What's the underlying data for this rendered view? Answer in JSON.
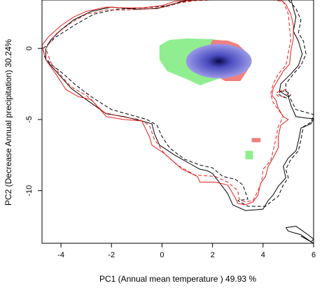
{
  "chart_data": {
    "type": "contour-density",
    "xlabel": "PC1 (Annual mean temperature ) 49.93 %",
    "ylabel": "PC2 (Decrease Annual precipitation) 30.24%",
    "xlim": [
      -4.75,
      6.0
    ],
    "ylim": [
      -13.7,
      3.4
    ],
    "x_ticks": [
      "-4",
      "-2",
      "0",
      "2",
      "4",
      "6"
    ],
    "y_ticks": [
      "0",
      "-5",
      "-10"
    ],
    "x_tick_values": [
      -4,
      -2,
      0,
      2,
      4,
      6
    ],
    "y_tick_values": [
      0,
      -5,
      -10
    ],
    "grid": false,
    "colors": {
      "black_line": "#000000",
      "red_line": "#e8201c",
      "green_fill": "#90ee90",
      "red_fill": "#f08080",
      "blue_low": "#9a9ae8",
      "blue_high": "#0a0a48"
    },
    "series": [
      {
        "color": "black",
        "style": "solid",
        "points": [
          [
            -4.6,
            0.0
          ],
          [
            -4.4,
            0.6
          ],
          [
            -4.0,
            1.3
          ],
          [
            -3.5,
            2.0
          ],
          [
            -2.8,
            2.6
          ],
          [
            -2.0,
            2.9
          ],
          [
            -1.0,
            2.75
          ],
          [
            -0.2,
            2.8
          ],
          [
            0.6,
            3.2
          ],
          [
            1.2,
            3.5
          ],
          [
            2.0,
            3.55
          ],
          [
            3.0,
            3.55
          ],
          [
            4.0,
            3.55
          ],
          [
            5.1,
            3.5
          ],
          [
            5.2,
            2.8
          ],
          [
            5.3,
            2.2
          ],
          [
            5.2,
            1.2
          ],
          [
            5.4,
            0.5
          ],
          [
            5.55,
            -0.4
          ],
          [
            5.4,
            -1.2
          ],
          [
            5.1,
            -1.8
          ],
          [
            4.7,
            -2.5
          ],
          [
            4.65,
            -3.0
          ],
          [
            5.0,
            -3.4
          ],
          [
            5.1,
            -4.0
          ],
          [
            5.3,
            -4.8
          ],
          [
            5.7,
            -4.9
          ],
          [
            6.0,
            -4.95
          ],
          [
            5.9,
            -5.3
          ],
          [
            5.5,
            -5.6
          ],
          [
            5.4,
            -6.5
          ],
          [
            5.3,
            -7.2
          ],
          [
            5.0,
            -7.7
          ],
          [
            4.8,
            -8.3
          ],
          [
            4.9,
            -9.1
          ],
          [
            4.6,
            -9.7
          ],
          [
            4.4,
            -10.3
          ],
          [
            4.2,
            -10.7
          ],
          [
            4.0,
            -11.3
          ],
          [
            3.3,
            -11.4
          ],
          [
            2.8,
            -11.0
          ],
          [
            2.6,
            -10.2
          ],
          [
            2.3,
            -9.5
          ],
          [
            2.0,
            -8.8
          ],
          [
            1.8,
            -8.6
          ],
          [
            1.5,
            -8.5
          ],
          [
            1.0,
            -8.0
          ],
          [
            0.5,
            -7.5
          ],
          [
            -0.1,
            -6.8
          ],
          [
            -0.3,
            -6.0
          ],
          [
            -0.4,
            -5.3
          ],
          [
            -0.8,
            -5.1
          ],
          [
            -1.5,
            -4.8
          ],
          [
            -2.2,
            -4.6
          ],
          [
            -3.0,
            -3.6
          ],
          [
            -3.6,
            -2.8
          ],
          [
            -4.0,
            -2.0
          ],
          [
            -4.4,
            -1.2
          ],
          [
            -4.6,
            -0.8
          ],
          [
            -4.6,
            0.0
          ]
        ]
      },
      {
        "color": "black",
        "style": "dashed",
        "points": [
          [
            -4.7,
            0.0
          ],
          [
            -4.2,
            0.8
          ],
          [
            -3.4,
            1.7
          ],
          [
            -2.7,
            2.4
          ],
          [
            -1.8,
            2.75
          ],
          [
            -0.7,
            2.85
          ],
          [
            0.3,
            3.0
          ],
          [
            0.9,
            3.3
          ],
          [
            1.5,
            3.4
          ],
          [
            2.3,
            3.4
          ],
          [
            3.4,
            3.4
          ],
          [
            4.4,
            3.4
          ],
          [
            5.0,
            3.4
          ],
          [
            5.3,
            2.8
          ],
          [
            5.5,
            2.0
          ],
          [
            5.4,
            1.1
          ],
          [
            5.6,
            0.5
          ],
          [
            5.7,
            -0.4
          ],
          [
            5.5,
            -1.2
          ],
          [
            5.2,
            -1.8
          ],
          [
            4.9,
            -2.5
          ],
          [
            4.9,
            -3.0
          ],
          [
            5.1,
            -3.6
          ],
          [
            5.3,
            -4.3
          ],
          [
            5.7,
            -4.5
          ],
          [
            6.0,
            -4.65
          ],
          [
            5.9,
            -5.2
          ],
          [
            5.6,
            -5.5
          ],
          [
            5.5,
            -6.4
          ],
          [
            5.4,
            -7.2
          ],
          [
            5.1,
            -7.8
          ],
          [
            4.9,
            -8.5
          ],
          [
            5.0,
            -9.1
          ],
          [
            4.8,
            -9.6
          ],
          [
            4.6,
            -10.4
          ],
          [
            4.3,
            -10.8
          ],
          [
            4.1,
            -11.1
          ],
          [
            3.4,
            -11.1
          ],
          [
            3.0,
            -10.7
          ],
          [
            3.4,
            -10.6
          ],
          [
            3.2,
            -9.6
          ],
          [
            2.9,
            -9.2
          ],
          [
            2.4,
            -9.0
          ],
          [
            2.0,
            -8.4
          ],
          [
            1.5,
            -8.2
          ],
          [
            0.9,
            -7.8
          ],
          [
            0.3,
            -7.0
          ],
          [
            0.0,
            -6.2
          ],
          [
            -0.2,
            -5.4
          ],
          [
            -0.6,
            -5.0
          ],
          [
            -1.2,
            -4.7
          ],
          [
            -2.0,
            -4.3
          ],
          [
            -2.8,
            -3.4
          ],
          [
            -3.4,
            -2.6
          ],
          [
            -3.9,
            -1.8
          ],
          [
            -4.4,
            -1.1
          ],
          [
            -4.65,
            -0.6
          ],
          [
            -4.7,
            0.0
          ]
        ]
      },
      {
        "color": "red",
        "style": "solid",
        "points": [
          [
            -4.75,
            0.2
          ],
          [
            -4.5,
            0.8
          ],
          [
            -4.0,
            1.6
          ],
          [
            -3.5,
            2.2
          ],
          [
            -3.0,
            2.6
          ],
          [
            -2.2,
            2.9
          ],
          [
            -1.5,
            2.85
          ],
          [
            -0.8,
            2.85
          ],
          [
            0.0,
            3.0
          ],
          [
            0.5,
            3.3
          ],
          [
            1.0,
            3.35
          ],
          [
            1.5,
            3.4
          ],
          [
            2.0,
            3.45
          ],
          [
            2.5,
            3.5
          ],
          [
            2.7,
            3.55
          ],
          [
            3.5,
            3.55
          ],
          [
            4.6,
            3.55
          ],
          [
            4.9,
            3.1
          ],
          [
            5.1,
            2.4
          ],
          [
            5.2,
            1.6
          ],
          [
            5.2,
            0.7
          ],
          [
            5.1,
            -0.2
          ],
          [
            5.05,
            -1.1
          ],
          [
            4.8,
            -1.6
          ],
          [
            4.6,
            -2.2
          ],
          [
            4.4,
            -2.8
          ],
          [
            4.35,
            -3.3
          ],
          [
            4.5,
            -3.6
          ],
          [
            4.6,
            -4.2
          ],
          [
            4.8,
            -4.8
          ],
          [
            5.0,
            -5.0
          ],
          [
            4.7,
            -5.4
          ],
          [
            4.6,
            -6.2
          ],
          [
            4.6,
            -7.0
          ],
          [
            4.4,
            -7.7
          ],
          [
            4.2,
            -8.3
          ],
          [
            4.1,
            -9.0
          ],
          [
            3.9,
            -9.5
          ],
          [
            3.8,
            -10.3
          ],
          [
            3.6,
            -10.8
          ],
          [
            3.3,
            -11.0
          ],
          [
            3.0,
            -10.9
          ],
          [
            2.9,
            -10.5
          ],
          [
            2.6,
            -9.6
          ],
          [
            2.1,
            -9.4
          ],
          [
            1.5,
            -9.4
          ],
          [
            1.4,
            -9.0
          ],
          [
            0.8,
            -8.5
          ],
          [
            0.1,
            -7.4
          ],
          [
            -0.4,
            -6.8
          ],
          [
            -0.5,
            -6.2
          ],
          [
            -0.8,
            -5.1
          ],
          [
            -1.5,
            -5.0
          ],
          [
            -2.2,
            -4.8
          ],
          [
            -2.8,
            -3.6
          ],
          [
            -3.3,
            -3.4
          ],
          [
            -3.8,
            -2.9
          ],
          [
            -4.2,
            -1.8
          ],
          [
            -4.6,
            -0.8
          ],
          [
            -4.75,
            0.2
          ]
        ]
      },
      {
        "color": "red",
        "style": "dashed",
        "points": [
          [
            -4.6,
            0.0
          ],
          [
            -4.2,
            1.0
          ],
          [
            -3.6,
            1.8
          ],
          [
            -3.0,
            2.4
          ],
          [
            -2.2,
            2.7
          ],
          [
            -1.5,
            2.7
          ],
          [
            -0.7,
            2.75
          ],
          [
            0.1,
            2.9
          ],
          [
            0.7,
            3.2
          ],
          [
            1.3,
            3.35
          ],
          [
            2.0,
            3.4
          ],
          [
            3.0,
            3.45
          ],
          [
            4.2,
            3.45
          ],
          [
            4.8,
            3.3
          ],
          [
            5.0,
            2.4
          ],
          [
            5.05,
            1.4
          ],
          [
            5.1,
            0.6
          ],
          [
            5.0,
            -0.3
          ],
          [
            4.9,
            -1.2
          ],
          [
            4.6,
            -1.8
          ],
          [
            4.4,
            -2.5
          ],
          [
            4.3,
            -3.2
          ],
          [
            4.4,
            -3.8
          ],
          [
            4.6,
            -4.3
          ],
          [
            4.8,
            -4.8
          ],
          [
            4.6,
            -5.5
          ],
          [
            4.5,
            -6.4
          ],
          [
            4.4,
            -7.2
          ],
          [
            4.3,
            -7.9
          ],
          [
            4.0,
            -8.5
          ],
          [
            3.95,
            -9.3
          ],
          [
            3.8,
            -10.0
          ],
          [
            3.6,
            -10.7
          ],
          [
            3.3,
            -10.8
          ],
          [
            3.05,
            -10.6
          ],
          [
            3.0,
            -10.0
          ],
          [
            2.6,
            -9.4
          ],
          [
            2.1,
            -9.0
          ],
          [
            1.3,
            -8.9
          ],
          [
            0.6,
            -8.2
          ],
          [
            0.1,
            -7.4
          ],
          [
            -0.3,
            -6.4
          ],
          [
            -0.5,
            -5.4
          ],
          [
            -0.9,
            -5.0
          ],
          [
            -1.6,
            -4.8
          ],
          [
            -2.3,
            -4.5
          ],
          [
            -3.0,
            -3.3
          ],
          [
            -3.6,
            -2.7
          ],
          [
            -4.0,
            -1.9
          ],
          [
            -4.4,
            -1.0
          ],
          [
            -4.6,
            0.0
          ]
        ]
      },
      {
        "color": "black",
        "style": "dashed",
        "points": [
          [
            4.7,
            -3.0
          ],
          [
            4.9,
            -3.0
          ],
          [
            5.1,
            -3.25
          ],
          [
            4.95,
            -3.5
          ],
          [
            4.75,
            -3.4
          ],
          [
            4.6,
            -3.2
          ],
          [
            4.7,
            -3.0
          ]
        ]
      },
      {
        "color": "red",
        "style": "dashed",
        "points": [
          [
            4.6,
            -3.05
          ],
          [
            4.85,
            -2.9
          ],
          [
            5.0,
            -3.15
          ],
          [
            4.85,
            -3.4
          ],
          [
            4.6,
            -3.35
          ],
          [
            4.5,
            -3.2
          ],
          [
            4.6,
            -3.05
          ]
        ]
      },
      {
        "color": "black",
        "style": "solid",
        "points": [
          [
            4.9,
            -12.6
          ],
          [
            5.3,
            -12.5
          ],
          [
            5.7,
            -13.0
          ],
          [
            6.0,
            -13.4
          ],
          [
            5.9,
            -13.6
          ],
          [
            5.5,
            -13.1
          ],
          [
            5.0,
            -12.85
          ],
          [
            4.9,
            -12.6
          ]
        ]
      },
      {
        "color": "black",
        "style": "solid",
        "points": [
          [
            5.5,
            -13.2
          ],
          [
            6.0,
            -13.7
          ]
        ]
      }
    ],
    "fill_regions": [
      {
        "color": "green",
        "points": [
          [
            -0.1,
            0.2
          ],
          [
            0.3,
            0.6
          ],
          [
            1.0,
            0.7
          ],
          [
            2.0,
            0.65
          ],
          [
            2.7,
            0.45
          ],
          [
            3.0,
            0.1
          ],
          [
            2.9,
            -0.6
          ],
          [
            2.8,
            -1.3
          ],
          [
            2.3,
            -2.1
          ],
          [
            1.5,
            -2.6
          ],
          [
            0.9,
            -2.1
          ],
          [
            0.2,
            -1.6
          ],
          [
            -0.1,
            -0.8
          ],
          [
            -0.1,
            0.2
          ]
        ]
      },
      {
        "color": "green",
        "points": [
          [
            3.3,
            -7.2
          ],
          [
            3.6,
            -7.2
          ],
          [
            3.6,
            -7.8
          ],
          [
            3.3,
            -7.8
          ]
        ]
      },
      {
        "color": "red",
        "points": [
          [
            2.0,
            0.6
          ],
          [
            2.6,
            0.55
          ],
          [
            3.0,
            0.3
          ],
          [
            3.3,
            -0.2
          ],
          [
            3.4,
            -0.9
          ],
          [
            3.4,
            -1.5
          ],
          [
            3.1,
            -2.3
          ],
          [
            2.5,
            -2.3
          ],
          [
            2.1,
            -1.9
          ],
          [
            1.9,
            -0.8
          ],
          [
            1.9,
            0.2
          ],
          [
            2.0,
            0.6
          ]
        ]
      },
      {
        "color": "red",
        "points": [
          [
            3.55,
            -6.3
          ],
          [
            3.9,
            -6.3
          ],
          [
            3.9,
            -6.6
          ],
          [
            3.55,
            -6.6
          ]
        ]
      }
    ],
    "density_peak": {
      "center": [
        2.25,
        -0.9
      ],
      "radii": [
        1.3,
        1.2
      ]
    }
  }
}
